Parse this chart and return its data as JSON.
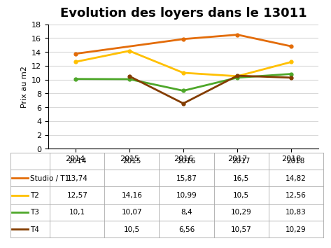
{
  "title": "Evolution des loyers dans le 13011",
  "ylabel": "Prix au m2",
  "years": [
    2014,
    2015,
    2016,
    2017,
    2018
  ],
  "series": {
    "Studio / T1": {
      "values": [
        13.74,
        null,
        15.87,
        16.5,
        14.82
      ],
      "color": "#E36C09",
      "linewidth": 2.0
    },
    "T2": {
      "values": [
        12.57,
        14.16,
        10.99,
        10.5,
        12.56
      ],
      "color": "#FFC000",
      "linewidth": 2.0
    },
    "T3": {
      "values": [
        10.1,
        10.07,
        8.4,
        10.29,
        10.83
      ],
      "color": "#4EA72A",
      "linewidth": 2.0
    },
    "T4": {
      "values": [
        null,
        10.5,
        6.56,
        10.57,
        10.29
      ],
      "color": "#833C00",
      "linewidth": 2.0
    }
  },
  "ylim": [
    0,
    18
  ],
  "yticks": [
    0,
    2,
    4,
    6,
    8,
    10,
    12,
    14,
    16,
    18
  ],
  "table_data": {
    "Studio / T1": [
      "13,74",
      "",
      "15,87",
      "16,5",
      "14,82"
    ],
    "T2": [
      "12,57",
      "14,16",
      "10,99",
      "10,5",
      "12,56"
    ],
    "T3": [
      "10,1",
      "10,07",
      "8,4",
      "10,29",
      "10,83"
    ],
    "T4": [
      "",
      "10,5",
      "6,56",
      "10,57",
      "10,29"
    ]
  },
  "background_color": "#FFFFFF",
  "grid_color": "#D9D9D9",
  "title_fontsize": 13,
  "axis_label_fontsize": 8,
  "tick_fontsize": 8,
  "table_fontsize": 7.5
}
